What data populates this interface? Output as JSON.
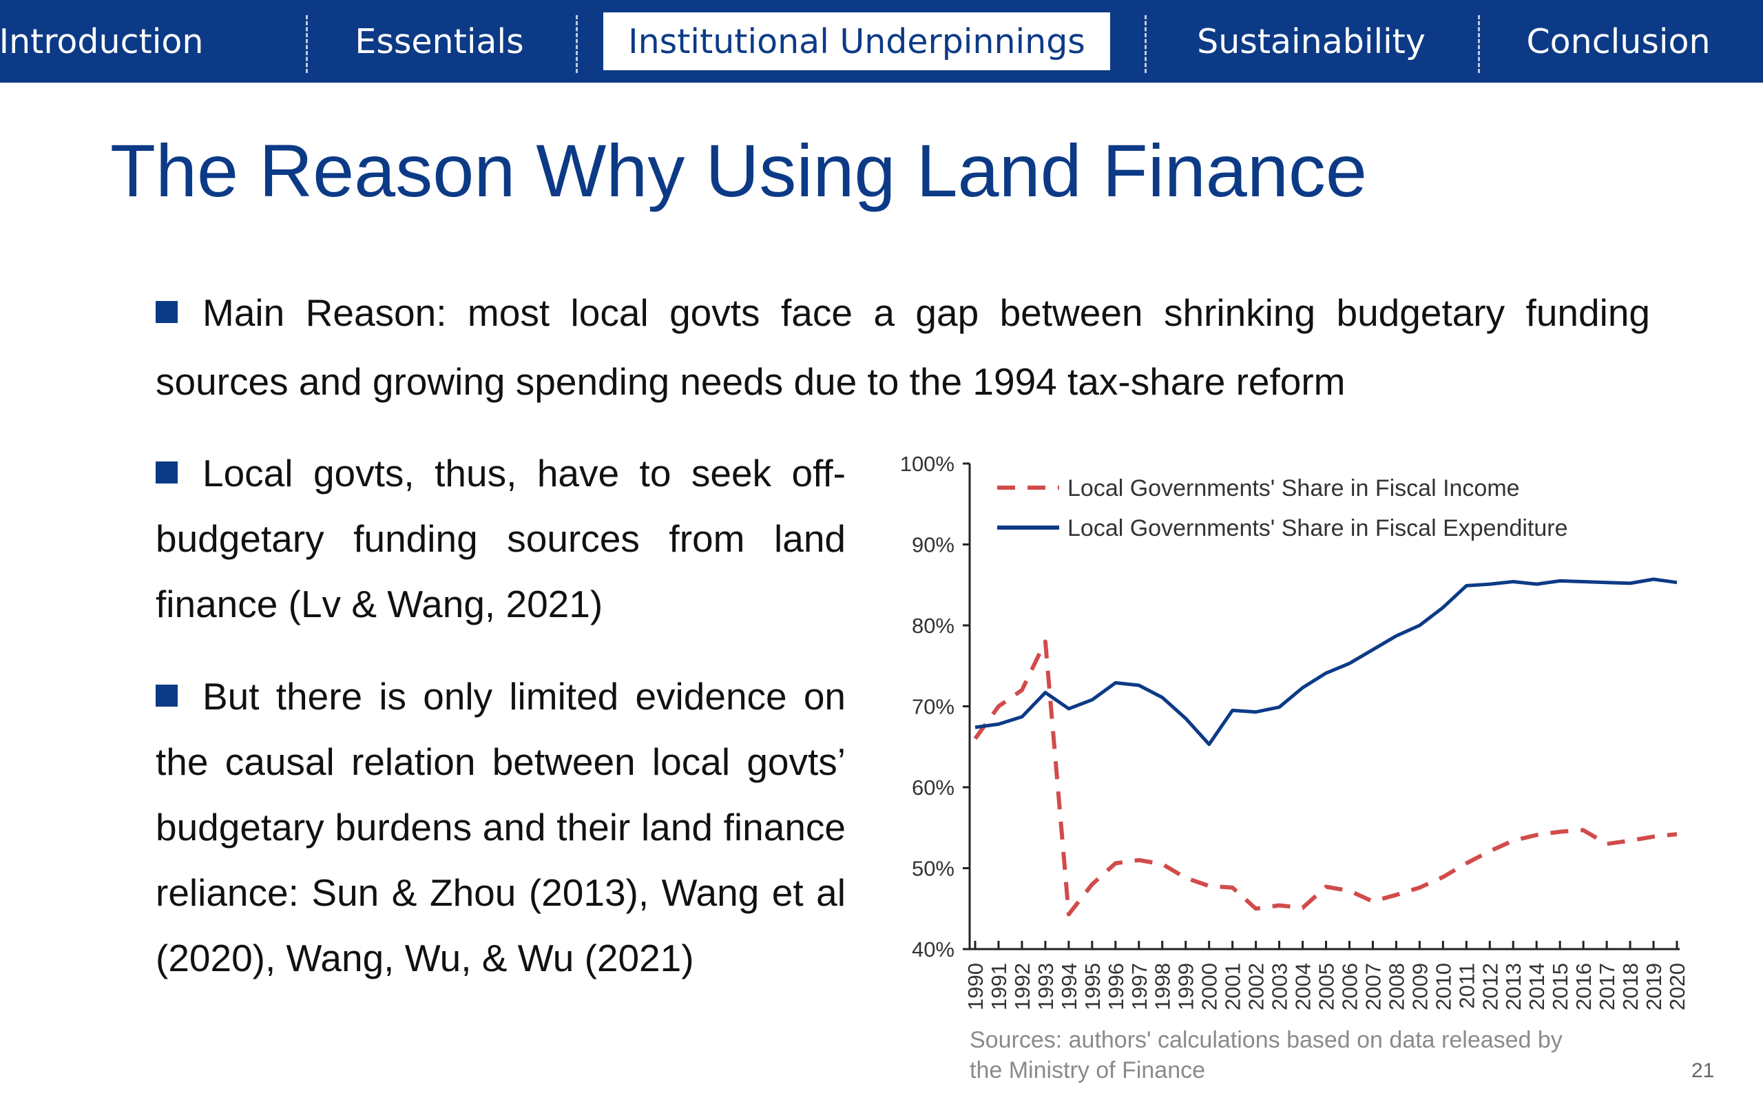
{
  "nav": {
    "items": [
      {
        "label": "Introduction"
      },
      {
        "label": "Essentials"
      },
      {
        "label": "Institutional Underpinnings",
        "active": true
      },
      {
        "label": "Sustainability"
      },
      {
        "label": "Conclusion"
      }
    ]
  },
  "slide": {
    "title": "The Reason Why Using Land Finance",
    "bullets": [
      "Main Reason: most local govts face a gap between shrinking budgetary funding sources and growing spending needs due to the 1994 tax-share reform",
      "Local govts, thus, have to seek off-budgetary funding sources from land finance (Lv & Wang, 2021)",
      "But there is only limited evidence on the causal relation between local govts’ budgetary burdens and their land finance reliance: Sun & Zhou (2013), Wang et al (2020), Wang, Wu, & Wu (2021)"
    ],
    "source": "Sources: authors' calculations based on data released by the Ministry of Finance",
    "page_number": "21"
  },
  "colors": {
    "nav_bg": "#0c3a86",
    "income_series": "#d24b4b",
    "expenditure_series": "#0c3a86"
  },
  "chart_data": {
    "type": "line",
    "x": [
      1990,
      1991,
      1992,
      1993,
      1994,
      1995,
      1996,
      1997,
      1998,
      1999,
      2000,
      2001,
      2002,
      2003,
      2004,
      2005,
      2006,
      2007,
      2008,
      2009,
      2010,
      2011,
      2012,
      2013,
      2014,
      2015,
      2016,
      2017,
      2018,
      2019,
      2020
    ],
    "x_tick_labels": [
      "1990",
      "1991",
      "1992",
      "1993",
      "1994",
      "1995",
      "1996",
      "1997",
      "1998",
      "1999",
      "2000",
      "2001",
      "2002",
      "2003",
      "2004",
      "2005",
      "2006",
      "2007",
      "2008",
      "2009",
      "2010",
      "2011",
      "2012",
      "2013",
      "2014",
      "2015",
      "2016",
      "2017",
      "2018",
      "2019",
      "2020"
    ],
    "y_tick_labels": [
      "100%",
      "90%",
      "80%",
      "70%",
      "60%",
      "50%",
      "40%"
    ],
    "ylim": [
      40,
      100
    ],
    "legend_position": "top-left",
    "grid": false,
    "series": [
      {
        "name": "Local Governments' Share in Fiscal Income",
        "style": "dashed",
        "color": "#d24b4b",
        "values": [
          66.0,
          70.0,
          72.0,
          78.0,
          44.3,
          48.0,
          50.6,
          51.0,
          50.5,
          48.8,
          47.8,
          47.6,
          45.0,
          45.4,
          45.1,
          47.7,
          47.2,
          45.9,
          46.7,
          47.6,
          48.9,
          50.6,
          52.1,
          53.4,
          54.1,
          54.5,
          54.7,
          53.0,
          53.4,
          53.9,
          54.2
        ]
      },
      {
        "name": "Local Governments' Share in Fiscal Expenditure",
        "style": "solid",
        "color": "#0c3a86",
        "values": [
          67.4,
          67.8,
          68.7,
          71.7,
          69.7,
          70.8,
          72.9,
          72.6,
          71.1,
          68.5,
          65.3,
          69.5,
          69.3,
          69.9,
          72.3,
          74.1,
          75.3,
          77.0,
          78.7,
          80.0,
          82.2,
          84.9,
          85.1,
          85.4,
          85.1,
          85.5,
          85.4,
          85.3,
          85.2,
          85.7,
          85.3
        ]
      }
    ]
  }
}
